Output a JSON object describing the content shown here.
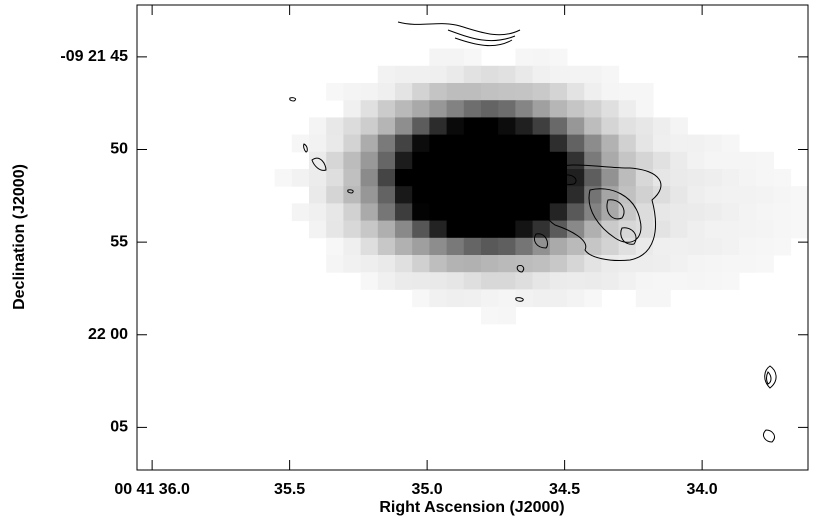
{
  "chart_data": {
    "type": "image",
    "xlabel": "Right Ascension (J2000)",
    "ylabel": "Declination (J2000)",
    "xlim": [
      36.055,
      33.615
    ],
    "ylim": [
      42.2,
      67.3
    ],
    "xticks": [
      {
        "value": 36.0,
        "label": "00 41 36.0"
      },
      35.5,
      {
        "value": 35.0,
        "label": "35.0"
      },
      34.5,
      {
        "value": 34.0,
        "label": "34.0"
      }
    ],
    "yticks": [
      {
        "value": 45,
        "label": "-09 21 45"
      },
      50,
      55,
      {
        "value": 60,
        "label": "22 00"
      },
      {
        "value": 65,
        "label": "05"
      }
    ]
  }
}
